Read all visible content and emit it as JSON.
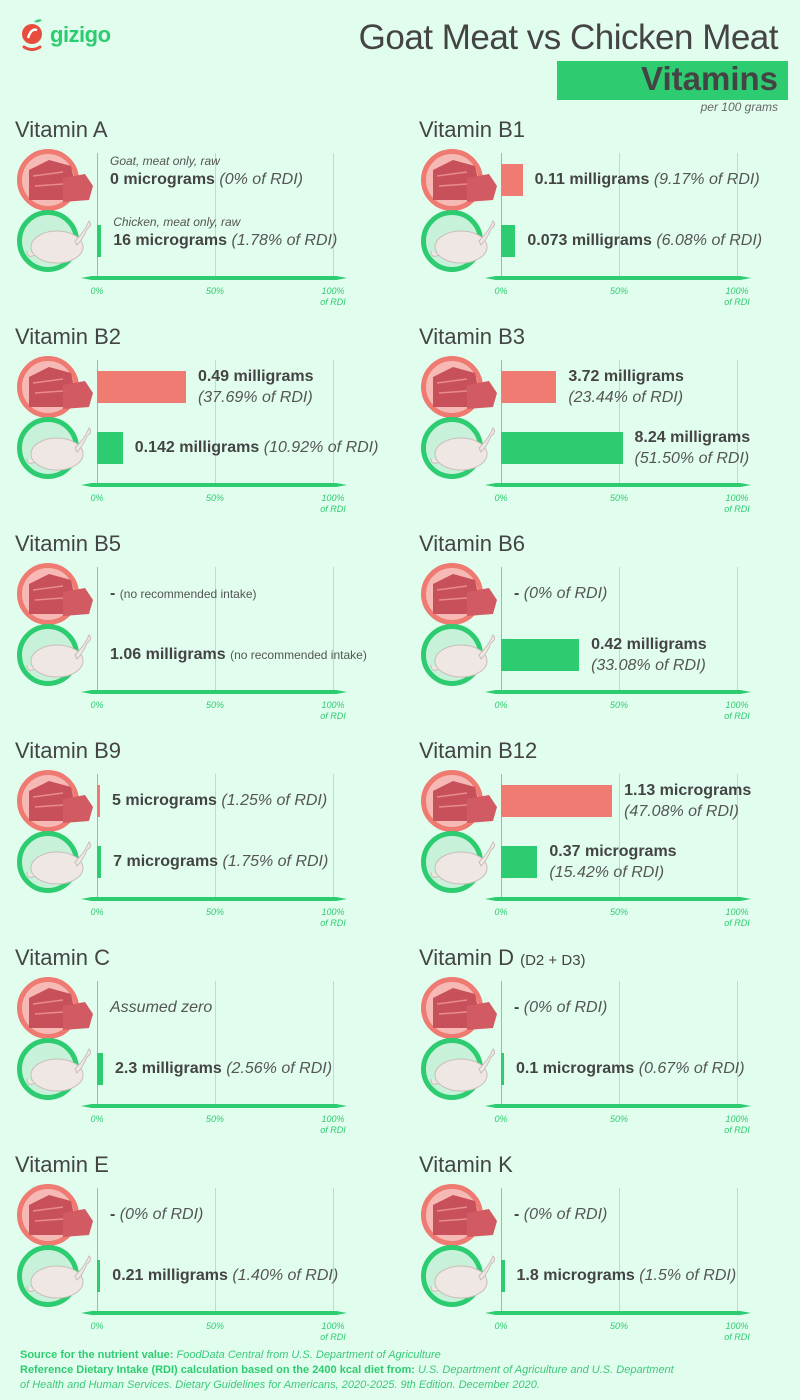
{
  "brand": {
    "name": "gizigo",
    "colors": {
      "goat": "#f07b72",
      "chicken": "#2ecc71",
      "background": "#e1fdee",
      "text": "#444444"
    }
  },
  "header": {
    "title": "Goat Meat vs Chicken Meat",
    "subtitle": "Vitamins",
    "per": "per 100 grams"
  },
  "chart_data": {
    "type": "bar",
    "orientation": "horizontal",
    "unit_axis": "% of RDI",
    "xlim": [
      0,
      100
    ],
    "ticks": [
      "0%",
      "50%",
      "100%",
      "of RDI"
    ],
    "series_icons": {
      "goat": "raw-goat-meat-icon",
      "chicken": "raw-chicken-icon"
    },
    "panels": [
      {
        "name": "Vitamin A",
        "goat": {
          "note": "Goat, meat only, raw",
          "amount": "0 micrograms",
          "rdi": "(0% of RDI)",
          "pct": 0
        },
        "chicken": {
          "note": "Chicken, meat only, raw",
          "amount": "16 micrograms",
          "rdi": "(1.78% of RDI)",
          "pct": 1.78
        }
      },
      {
        "name": "Vitamin B1",
        "goat": {
          "amount": "0.11 milligrams",
          "rdi": "(9.17% of RDI)",
          "pct": 9.17
        },
        "chicken": {
          "amount": "0.073 milligrams",
          "rdi": "(6.08% of RDI)",
          "pct": 6.08
        }
      },
      {
        "name": "Vitamin B2",
        "goat": {
          "amount": "0.49 milligrams",
          "rdi": "(37.69% of RDI)",
          "pct": 37.69
        },
        "chicken": {
          "amount": "0.142 milligrams",
          "rdi": "(10.92% of RDI)",
          "pct": 10.92
        }
      },
      {
        "name": "Vitamin B3",
        "goat": {
          "amount": "3.72 milligrams",
          "rdi": "(23.44% of RDI)",
          "pct": 23.44
        },
        "chicken": {
          "amount": "8.24 milligrams",
          "rdi": "(51.50% of RDI)",
          "pct": 51.5
        }
      },
      {
        "name": "Vitamin B5",
        "goat": {
          "amount": "-",
          "nri": "(no recommended intake)",
          "pct": null
        },
        "chicken": {
          "amount": "1.06 milligrams",
          "nri": "(no recommended intake)",
          "pct": null
        }
      },
      {
        "name": "Vitamin B6",
        "goat": {
          "amount": "-",
          "rdi": "(0% of RDI)",
          "pct": null
        },
        "chicken": {
          "amount": "0.42 milligrams",
          "rdi": "(33.08% of RDI)",
          "pct": 33.08
        }
      },
      {
        "name": "Vitamin B9",
        "goat": {
          "amount": "5 micrograms",
          "rdi": "(1.25% of RDI)",
          "pct": 1.25
        },
        "chicken": {
          "amount": "7 micrograms",
          "rdi": "(1.75% of RDI)",
          "pct": 1.75
        }
      },
      {
        "name": "Vitamin B12",
        "goat": {
          "amount": "1.13 micrograms",
          "rdi": "(47.08% of RDI)",
          "pct": 47.08
        },
        "chicken": {
          "amount": "0.37 micrograms",
          "rdi": "(15.42% of RDI)",
          "pct": 15.42
        }
      },
      {
        "name": "Vitamin C",
        "goat": {
          "note_only": "Assumed zero",
          "pct": null
        },
        "chicken": {
          "amount": "2.3 milligrams",
          "rdi": "(2.56% of RDI)",
          "pct": 2.56
        }
      },
      {
        "name": "Vitamin D",
        "suffix": "(D2 + D3)",
        "goat": {
          "amount": "-",
          "rdi": "(0% of RDI)",
          "pct": null
        },
        "chicken": {
          "amount": "0.1 micrograms",
          "rdi": "(0.67% of RDI)",
          "pct": 0.67
        }
      },
      {
        "name": "Vitamin E",
        "goat": {
          "amount": "-",
          "rdi": "(0% of RDI)",
          "pct": null
        },
        "chicken": {
          "amount": "0.21 milligrams",
          "rdi": "(1.40% of RDI)",
          "pct": 1.4
        }
      },
      {
        "name": "Vitamin K",
        "goat": {
          "amount": "-",
          "rdi": "(0% of RDI)",
          "pct": null
        },
        "chicken": {
          "amount": "1.8 micrograms",
          "rdi": "(1.5% of RDI)",
          "pct": 1.5
        }
      }
    ]
  },
  "footer": {
    "source_label": "Source for the nutrient value:",
    "source_text": "FoodData Central from U.S. Department of Agriculture",
    "rdi_label": "Reference Dietary Intake (RDI) calculation based on the 2400 kcal diet from:",
    "rdi_text_1": "U.S. Department of Agriculture and U.S. Department",
    "rdi_text_2": "of Health and Human Services. Dietary Guidelines for Americans, 2020-2025. 9th Edition. December 2020."
  }
}
